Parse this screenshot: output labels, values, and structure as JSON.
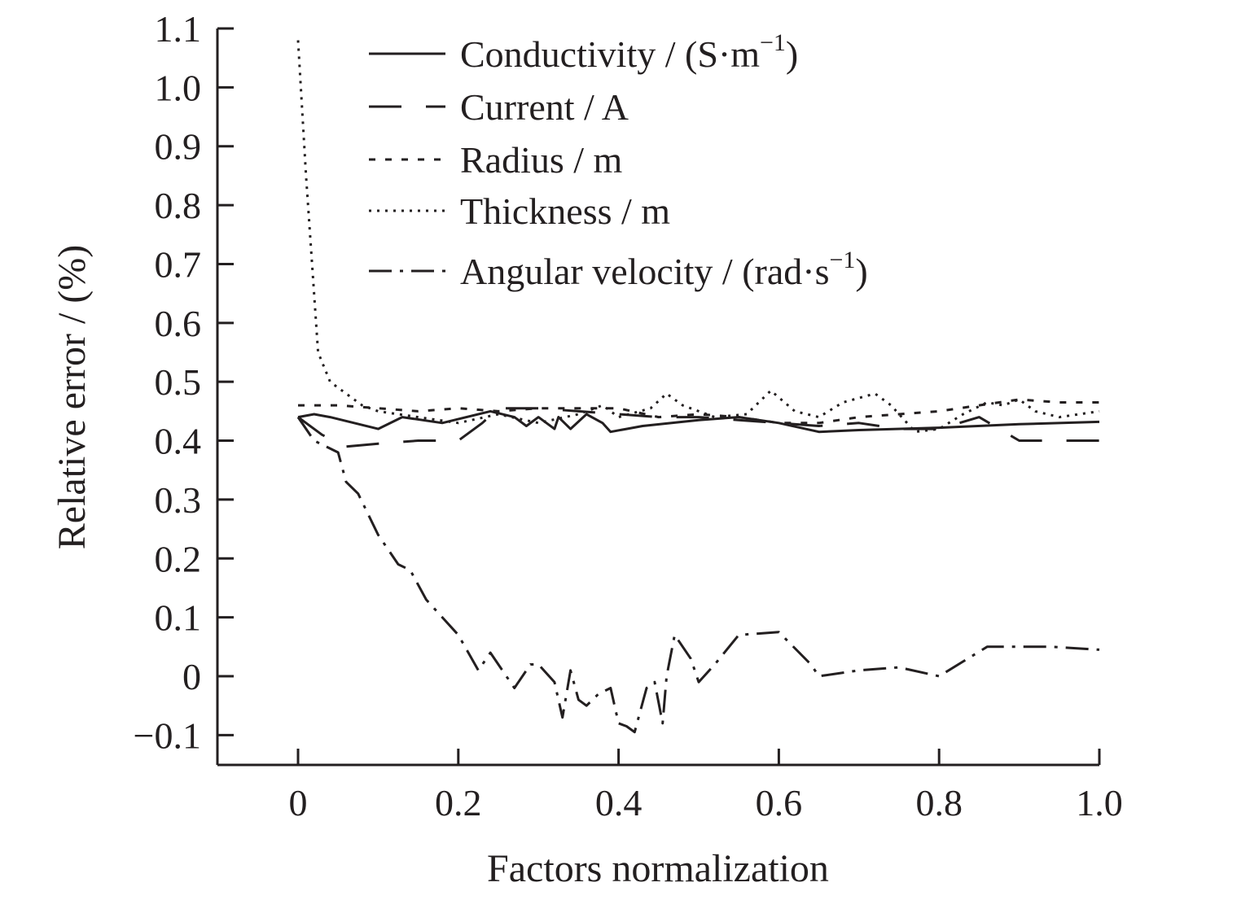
{
  "chart_data": {
    "type": "line",
    "title": "",
    "xlabel": "Factors normalization",
    "ylabel": "Relative error / (%)",
    "xlim": [
      -0.1,
      1.0
    ],
    "ylim": [
      -0.15,
      1.1
    ],
    "xticks": [
      0,
      0.2,
      0.4,
      0.6,
      0.8,
      1.0
    ],
    "xtick_labels": [
      "0",
      "0.2",
      "0.4",
      "0.6",
      "0.8",
      "1.0"
    ],
    "yticks": [
      -0.1,
      0,
      0.1,
      0.2,
      0.3,
      0.4,
      0.5,
      0.6,
      0.7,
      0.8,
      0.9,
      1.0,
      1.1
    ],
    "ytick_labels": [
      "−0.1",
      "0",
      "0.1",
      "0.2",
      "0.3",
      "0.4",
      "0.5",
      "0.6",
      "0.7",
      "0.8",
      "0.9",
      "1.0",
      "1.1"
    ],
    "grid": false,
    "legend_position": "top",
    "series": [
      {
        "name": "Conductivity / (S·m",
        "name_sup": "−1",
        "name_suffix": ")",
        "style": "solid",
        "x": [
          0,
          0.02,
          0.04,
          0.1,
          0.13,
          0.18,
          0.24,
          0.27,
          0.285,
          0.3,
          0.32,
          0.325,
          0.34,
          0.36,
          0.38,
          0.39,
          0.41,
          0.43,
          0.5,
          0.55,
          0.6,
          0.65,
          0.7,
          0.8,
          0.9,
          1.0
        ],
        "y": [
          0.44,
          0.445,
          0.44,
          0.42,
          0.44,
          0.43,
          0.45,
          0.44,
          0.425,
          0.44,
          0.42,
          0.44,
          0.42,
          0.445,
          0.43,
          0.415,
          0.42,
          0.425,
          0.435,
          0.44,
          0.43,
          0.415,
          0.418,
          0.422,
          0.428,
          0.432
        ]
      },
      {
        "name": "Current / A",
        "style": "dashed",
        "x": [
          0,
          0.03,
          0.06,
          0.1,
          0.15,
          0.2,
          0.23,
          0.25,
          0.3,
          0.35,
          0.4,
          0.45,
          0.5,
          0.55,
          0.6,
          0.65,
          0.7,
          0.75,
          0.8,
          0.85,
          0.9,
          0.95,
          1.0
        ],
        "y": [
          0.44,
          0.41,
          0.39,
          0.395,
          0.4,
          0.4,
          0.43,
          0.455,
          0.455,
          0.45,
          0.445,
          0.44,
          0.44,
          0.435,
          0.43,
          0.425,
          0.43,
          0.42,
          0.42,
          0.44,
          0.4,
          0.4,
          0.4
        ]
      },
      {
        "name": "Radius / m",
        "style": "densely-dashed",
        "x": [
          0,
          0.05,
          0.1,
          0.15,
          0.2,
          0.25,
          0.3,
          0.35,
          0.4,
          0.45,
          0.5,
          0.55,
          0.6,
          0.65,
          0.7,
          0.75,
          0.8,
          0.85,
          0.9,
          0.95,
          1.0
        ],
        "y": [
          0.46,
          0.46,
          0.455,
          0.45,
          0.455,
          0.45,
          0.455,
          0.455,
          0.455,
          0.44,
          0.445,
          0.44,
          0.43,
          0.43,
          0.44,
          0.445,
          0.45,
          0.46,
          0.47,
          0.465,
          0.465
        ]
      },
      {
        "name": "Thickness / m",
        "style": "dotted",
        "x": [
          0,
          0.01,
          0.02,
          0.025,
          0.04,
          0.06,
          0.08,
          0.1,
          0.15,
          0.2,
          0.25,
          0.3,
          0.35,
          0.38,
          0.4,
          0.44,
          0.46,
          0.48,
          0.52,
          0.56,
          0.59,
          0.62,
          0.65,
          0.68,
          0.72,
          0.74,
          0.77,
          0.8,
          0.83,
          0.86,
          0.88,
          0.9,
          0.92,
          0.95,
          1.0
        ],
        "y": [
          1.08,
          0.85,
          0.65,
          0.55,
          0.5,
          0.48,
          0.46,
          0.45,
          0.44,
          0.43,
          0.445,
          0.43,
          0.445,
          0.46,
          0.44,
          0.455,
          0.48,
          0.46,
          0.44,
          0.445,
          0.485,
          0.45,
          0.44,
          0.465,
          0.48,
          0.46,
          0.415,
          0.42,
          0.445,
          0.465,
          0.46,
          0.47,
          0.45,
          0.44,
          0.45
        ]
      },
      {
        "name": "Angular velocity / (rad·s",
        "name_sup": "−1",
        "name_suffix": ")",
        "style": "dash-dot",
        "x": [
          0,
          0.02,
          0.05,
          0.06,
          0.075,
          0.1,
          0.125,
          0.14,
          0.16,
          0.2,
          0.225,
          0.24,
          0.26,
          0.27,
          0.29,
          0.3,
          0.32,
          0.33,
          0.34,
          0.35,
          0.36,
          0.375,
          0.39,
          0.4,
          0.41,
          0.42,
          0.435,
          0.445,
          0.455,
          0.46,
          0.47,
          0.49,
          0.5,
          0.52,
          0.55,
          0.6,
          0.64,
          0.65,
          0.7,
          0.75,
          0.8,
          0.86,
          0.9,
          0.94,
          1.0
        ],
        "y": [
          0.44,
          0.4,
          0.38,
          0.33,
          0.31,
          0.24,
          0.19,
          0.18,
          0.13,
          0.07,
          0.01,
          0.04,
          0.0,
          -0.02,
          0.02,
          0.02,
          -0.01,
          -0.07,
          0.01,
          -0.04,
          -0.05,
          -0.03,
          -0.02,
          -0.08,
          -0.085,
          -0.095,
          -0.02,
          -0.01,
          -0.08,
          0.0,
          0.07,
          0.03,
          -0.01,
          0.02,
          0.07,
          0.075,
          0.02,
          0.0,
          0.01,
          0.015,
          0.0,
          0.05,
          0.05,
          0.05,
          0.045
        ]
      }
    ]
  }
}
